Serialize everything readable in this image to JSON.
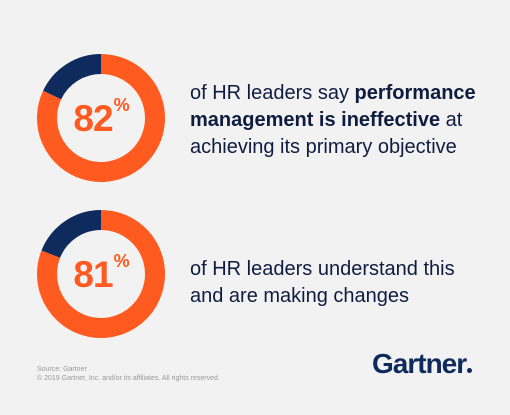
{
  "chart_data": [
    {
      "type": "pie",
      "value": 82,
      "value_display": "82",
      "unit": "%",
      "remainder": 18,
      "statement_before": "of HR leaders say ",
      "statement_bold": "performance management is ineffective",
      "statement_after": " at achieving its primary objective"
    },
    {
      "type": "pie",
      "value": 81,
      "value_display": "81",
      "unit": "%",
      "remainder": 19,
      "statement_line1": "of HR leaders understand this",
      "statement_line2": "and are making changes"
    }
  ],
  "footer": {
    "source": "Source: Gartner",
    "copyright": "© 2019 Gartner, Inc. and/or its affiliates. All rights reserved."
  },
  "logo": {
    "text": "Gartner"
  },
  "colors": {
    "background": "#f2f2f2",
    "accent": "#ff5a1f",
    "remainder": "#0f2a5c",
    "text": "#0f1c3f"
  }
}
